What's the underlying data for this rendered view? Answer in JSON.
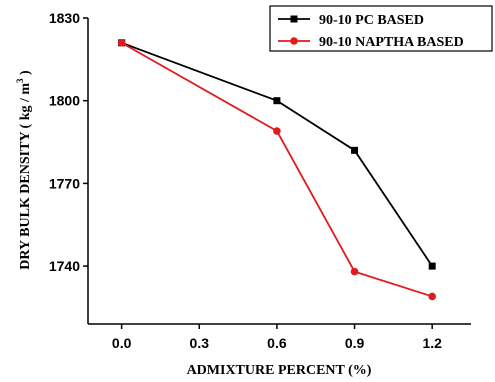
{
  "chart_data": {
    "type": "line",
    "title": "",
    "xlabel": "ADMIXTURE PERCENT (%)",
    "ylabel_main": "DRY BULK DENSITY ( kg / m",
    "ylabel_sup": "3",
    "ylabel_end": " )",
    "x": [
      0.0,
      0.6,
      0.9,
      1.2
    ],
    "xticks": [
      "0.0",
      "0.3",
      "0.6",
      "0.9",
      "1.2"
    ],
    "xtick_values": [
      0.0,
      0.3,
      0.6,
      0.9,
      1.2
    ],
    "yticks": [
      "1740",
      "1770",
      "1800",
      "1830"
    ],
    "ytick_values": [
      1740,
      1770,
      1800,
      1830
    ],
    "xlim": [
      -0.13,
      1.35
    ],
    "ylim": [
      1719,
      1830
    ],
    "legend_position": "top-right",
    "grid": false,
    "series": [
      {
        "name": "90-10 PC BASED",
        "color": "#000000",
        "marker": "square",
        "values": [
          1821,
          1800,
          1782,
          1740
        ]
      },
      {
        "name": "90-10 NAPTHA BASED",
        "color": "#e31a1c",
        "marker": "circle",
        "values": [
          1821,
          1789,
          1738,
          1729
        ]
      }
    ]
  }
}
